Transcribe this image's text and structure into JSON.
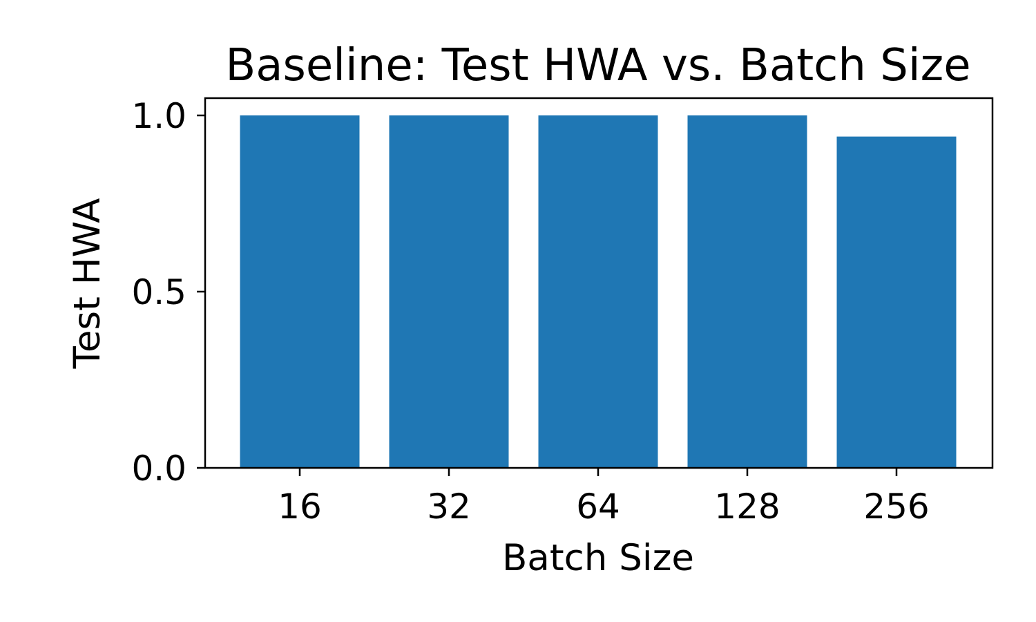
{
  "chart_data": {
    "type": "bar",
    "title": "Baseline: Test HWA vs. Batch Size",
    "xlabel": "Batch Size",
    "ylabel": "Test HWA",
    "categories": [
      "16",
      "32",
      "64",
      "128",
      "256"
    ],
    "values": [
      1.0,
      1.0,
      1.0,
      1.0,
      0.94
    ],
    "ylim": [
      0,
      1.05
    ],
    "yticks": [
      "0.0",
      "0.5",
      "1.0"
    ],
    "grid": false,
    "bar_color": "#1f77b4"
  }
}
